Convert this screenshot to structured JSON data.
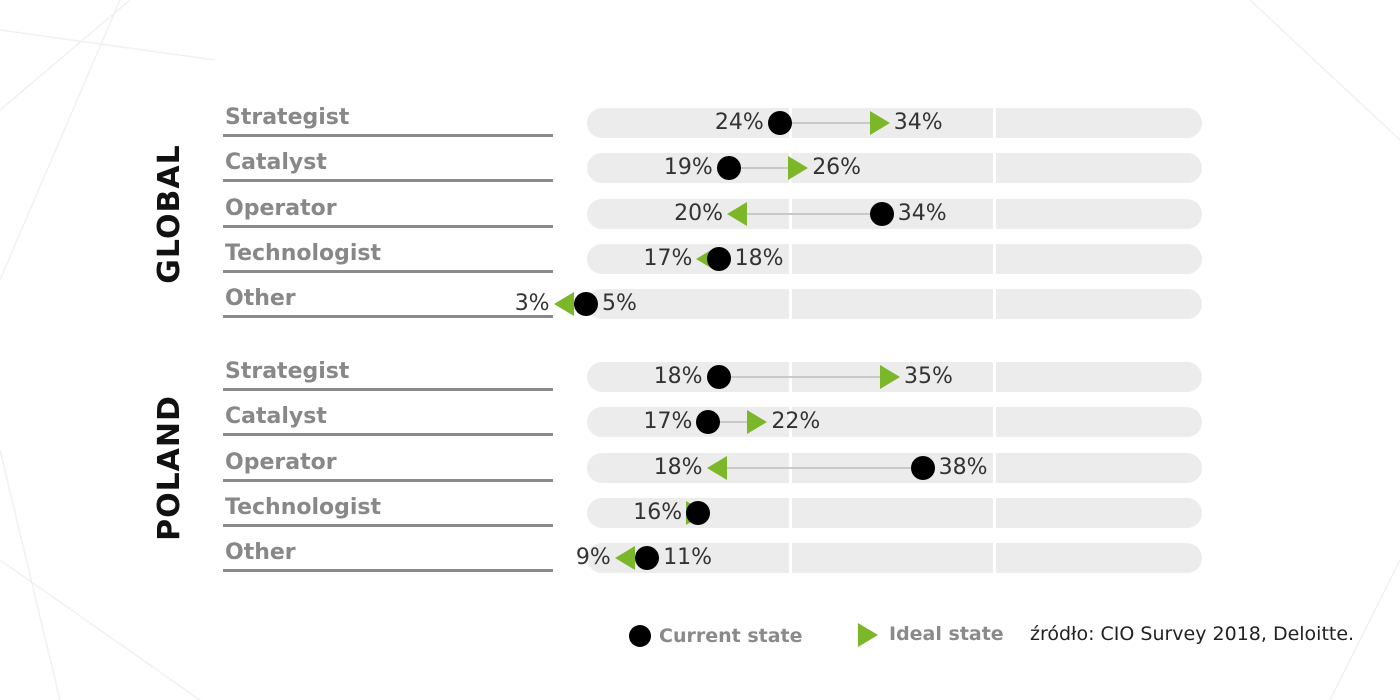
{
  "colors": {
    "ideal": "#7cb629",
    "current": "#000000",
    "track": "#ececec",
    "label": "#888888"
  },
  "chart_data": {
    "type": "dot-arrow",
    "axis_range": [
      0,
      50
    ],
    "series": [
      {
        "name": "Current state",
        "marker": "dot",
        "color": "#000000"
      },
      {
        "name": "Ideal state",
        "marker": "triangle",
        "color": "#7cb629"
      }
    ],
    "groups": [
      {
        "name": "GLOBAL",
        "rows": [
          {
            "category": "Strategist",
            "current": 24,
            "ideal": 34,
            "current_label": "24%",
            "ideal_label": "34%"
          },
          {
            "category": "Catalyst",
            "current": 19,
            "ideal": 26,
            "current_label": "19%",
            "ideal_label": "26%"
          },
          {
            "category": "Operator",
            "current": 34,
            "ideal": 20,
            "current_label": "34%",
            "ideal_label": "20%"
          },
          {
            "category": "Technologist",
            "current": 18,
            "ideal": 17,
            "current_label": "18%",
            "ideal_label": "17%"
          },
          {
            "category": "Other",
            "current": 5,
            "ideal": 3,
            "current_label": "5%",
            "ideal_label": "3%"
          }
        ]
      },
      {
        "name": "POLAND",
        "rows": [
          {
            "category": "Strategist",
            "current": 18,
            "ideal": 35,
            "current_label": "18%",
            "ideal_label": "35%"
          },
          {
            "category": "Catalyst",
            "current": 17,
            "ideal": 22,
            "current_label": "17%",
            "ideal_label": "22%"
          },
          {
            "category": "Operator",
            "current": 38,
            "ideal": 18,
            "current_label": "38%",
            "ideal_label": "18%"
          },
          {
            "category": "Technologist",
            "current": 16,
            "ideal": 16,
            "current_label": "16%",
            "ideal_label": ""
          },
          {
            "category": "Other",
            "current": 11,
            "ideal": 9,
            "current_label": "11%",
            "ideal_label": "9%"
          }
        ]
      }
    ],
    "legend": {
      "current": "Current state",
      "ideal": "Ideal state",
      "position": "bottom"
    },
    "source": "źródło: CIO Survey 2018, Deloitte."
  }
}
